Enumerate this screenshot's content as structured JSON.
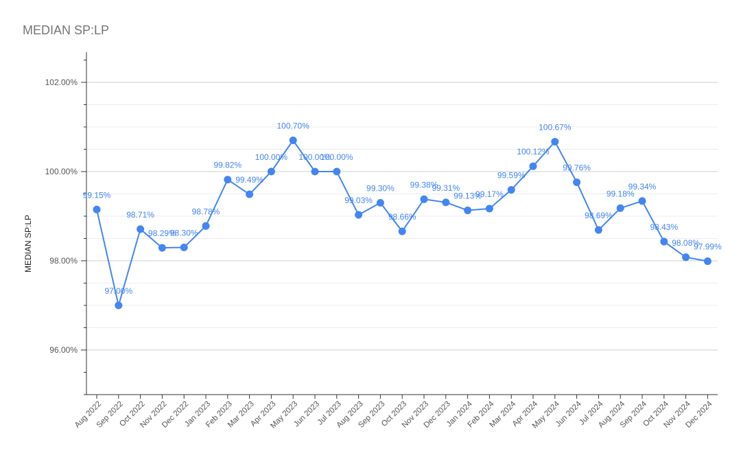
{
  "chart_data": {
    "type": "line",
    "title": "MEDIAN SP:LP",
    "xlabel": "",
    "ylabel": "MEDIAN SP:LP",
    "ylim": [
      95.0,
      102.5
    ],
    "y_ticks": [
      "96.00%",
      "98.00%",
      "100.00%",
      "102.00%"
    ],
    "y_tick_values": [
      96,
      98,
      100,
      102
    ],
    "grid": true,
    "series_color": "#4285f4",
    "categories": [
      "Aug 2022",
      "Sep 2022",
      "Oct 2022",
      "Nov 2022",
      "Dec 2022",
      "Jan 2023",
      "Feb 2023",
      "Mar 2023",
      "Apr 2023",
      "May 2023",
      "Jun 2023",
      "Jul 2023",
      "Aug 2023",
      "Sep 2023",
      "Oct 2023",
      "Nov 2023",
      "Dec 2023",
      "Jan 2024",
      "Feb 2024",
      "Mar 2024",
      "Apr 2024",
      "May 2024",
      "Jun 2024",
      "Jul 2024",
      "Aug 2024",
      "Sep 2024",
      "Oct 2024",
      "Nov 2024",
      "Dec 2024"
    ],
    "values": [
      99.15,
      97.0,
      98.71,
      98.29,
      98.3,
      98.78,
      99.82,
      99.49,
      100.0,
      100.7,
      100.0,
      100.0,
      99.03,
      99.3,
      98.66,
      99.38,
      99.31,
      99.13,
      99.17,
      99.59,
      100.12,
      100.67,
      99.76,
      98.69,
      99.18,
      99.34,
      98.43,
      98.08,
      97.99
    ],
    "data_labels": [
      "99.15%",
      "97.00%",
      "98.71%",
      "98.29%",
      "98.30%",
      "98.78%",
      "99.82%",
      "99.49%",
      "100.00%",
      "100.70%",
      "100.00%",
      "100.00%",
      "99.03%",
      "99.30%",
      "98.66%",
      "99.38%",
      "99.31%",
      "99.13%",
      "99.17%",
      "99.59%",
      "100.12%",
      "100.67%",
      "99.76%",
      "98.69%",
      "99.18%",
      "99.34%",
      "98.43%",
      "98.08%",
      "97.99%"
    ]
  }
}
